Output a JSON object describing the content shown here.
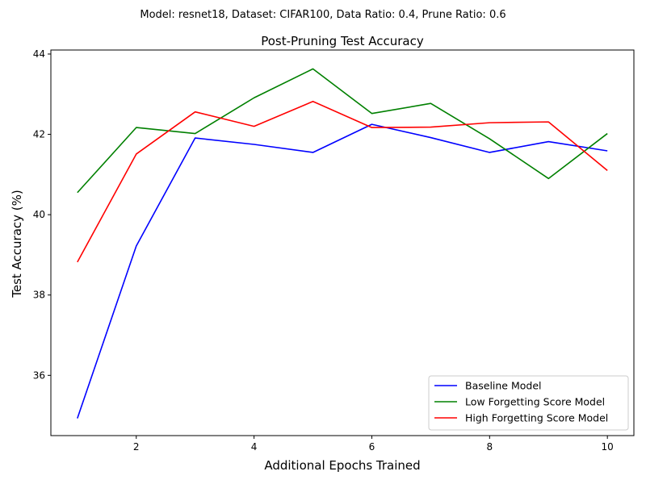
{
  "suptitle": "Model: resnet18, Dataset: CIFAR100, Data Ratio: 0.4, Prune Ratio: 0.6",
  "chart_data": {
    "type": "line",
    "title": "Post-Pruning Test Accuracy",
    "xlabel": "Additional Epochs Trained",
    "ylabel": "Test Accuracy (%)",
    "x": [
      1,
      2,
      3,
      4,
      5,
      6,
      7,
      8,
      9,
      10
    ],
    "xlim": [
      0.55,
      10.45
    ],
    "ylim": [
      34.5,
      44.1
    ],
    "xticks": [
      2,
      4,
      6,
      8,
      10
    ],
    "yticks": [
      36,
      38,
      40,
      42,
      44
    ],
    "grid": false,
    "legend_position": "lower right",
    "series": [
      {
        "name": "Baseline Model",
        "color": "#0000ff",
        "values": [
          34.93,
          39.22,
          41.91,
          41.75,
          41.55,
          42.25,
          41.92,
          41.55,
          41.82,
          41.59
        ]
      },
      {
        "name": "Low Forgetting Score Model",
        "color": "#008000",
        "values": [
          40.55,
          42.17,
          42.02,
          42.91,
          43.63,
          42.52,
          42.77,
          41.89,
          40.9,
          42.02
        ]
      },
      {
        "name": "High Forgetting Score Model",
        "color": "#ff0000",
        "values": [
          38.82,
          41.51,
          42.56,
          42.2,
          42.82,
          42.17,
          42.18,
          42.29,
          42.31,
          41.1
        ]
      }
    ]
  }
}
